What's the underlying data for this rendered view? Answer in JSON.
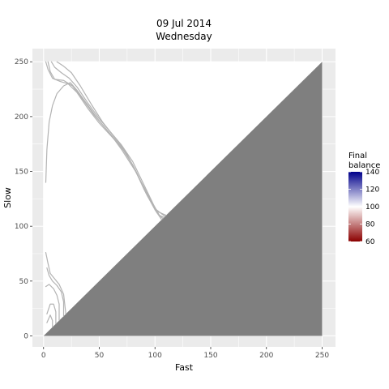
{
  "chart_data": {
    "type": "contour",
    "title": "09 Jul 2014",
    "subtitle": "Wednesday",
    "xlabel": "Fast",
    "ylabel": "Slow",
    "xlim": [
      -10,
      262
    ],
    "ylim": [
      -10,
      262
    ],
    "x_ticks": [
      0,
      50,
      100,
      150,
      200,
      250
    ],
    "y_ticks": [
      0,
      50,
      100,
      150,
      200,
      250
    ],
    "grid": true,
    "panel_background": "#ebebeb",
    "grid_color": "#ffffff",
    "data_region_color": "#ffffff",
    "masked_region": {
      "description_rule": "Slow <= Fast",
      "color": "#7f7f7f",
      "extent": [
        0,
        250
      ]
    },
    "contour_color": "#b3b3b3",
    "legend": {
      "title_lines": [
        "Final",
        "balance"
      ],
      "placement": "right",
      "range": [
        60,
        140
      ],
      "midpoint": 100,
      "ticks": [
        60,
        80,
        100,
        120,
        140
      ],
      "colors": {
        "low": "#8b0000",
        "mid": "#ffffff",
        "high": "#00008b"
      }
    },
    "contours": [
      {
        "name": "upper-level-1",
        "points": [
          [
            2,
            250
          ],
          [
            4,
            243
          ],
          [
            8,
            235
          ],
          [
            15,
            232
          ],
          [
            22,
            230
          ],
          [
            30,
            222
          ],
          [
            40,
            207
          ],
          [
            50,
            194
          ],
          [
            60,
            183
          ],
          [
            70,
            172
          ],
          [
            80,
            156
          ],
          [
            90,
            134
          ],
          [
            100,
            115
          ],
          [
            106,
            106
          ]
        ]
      },
      {
        "name": "upper-level-2",
        "points": [
          [
            4,
            250
          ],
          [
            6,
            241
          ],
          [
            10,
            234
          ],
          [
            18,
            233
          ],
          [
            26,
            228
          ],
          [
            35,
            216
          ],
          [
            45,
            202
          ],
          [
            55,
            190
          ],
          [
            65,
            178
          ],
          [
            75,
            165
          ],
          [
            84,
            148
          ],
          [
            93,
            128
          ],
          [
            102,
            112
          ],
          [
            107,
            107
          ]
        ]
      },
      {
        "name": "upper-level-3",
        "points": [
          [
            7,
            250
          ],
          [
            10,
            245
          ],
          [
            16,
            240
          ],
          [
            23,
            235
          ],
          [
            30,
            227
          ],
          [
            40,
            212
          ],
          [
            50,
            198
          ],
          [
            60,
            186
          ],
          [
            70,
            174
          ],
          [
            80,
            159
          ],
          [
            90,
            138
          ],
          [
            99,
            119
          ],
          [
            104,
            110
          ],
          [
            108,
            108
          ]
        ]
      },
      {
        "name": "upper-level-4",
        "points": [
          [
            12,
            250
          ],
          [
            18,
            246
          ],
          [
            25,
            240
          ],
          [
            33,
            228
          ],
          [
            43,
            211
          ],
          [
            53,
            195
          ],
          [
            63,
            182
          ],
          [
            73,
            169
          ],
          [
            83,
            150
          ],
          [
            92,
            130
          ],
          [
            100,
            116
          ],
          [
            109,
            109
          ]
        ]
      },
      {
        "name": "upper-level-5",
        "points": [
          [
            2,
            140
          ],
          [
            3,
            170
          ],
          [
            5,
            195
          ],
          [
            8,
            210
          ],
          [
            12,
            221
          ],
          [
            18,
            228
          ],
          [
            24,
            231
          ],
          [
            30,
            224
          ],
          [
            40,
            210
          ],
          [
            50,
            196
          ],
          [
            60,
            184
          ],
          [
            70,
            170
          ],
          [
            82,
            151
          ],
          [
            92,
            132
          ],
          [
            101,
            114
          ],
          [
            110,
            110
          ]
        ]
      },
      {
        "name": "lower-level-1",
        "points": [
          [
            2,
            76
          ],
          [
            4,
            66
          ],
          [
            6,
            57
          ],
          [
            10,
            52
          ],
          [
            14,
            47
          ],
          [
            18,
            38
          ],
          [
            20,
            20
          ]
        ]
      },
      {
        "name": "lower-level-2",
        "points": [
          [
            3,
            62
          ],
          [
            5,
            55
          ],
          [
            8,
            50
          ],
          [
            12,
            46
          ],
          [
            16,
            40
          ],
          [
            18,
            31
          ],
          [
            18,
            18
          ]
        ]
      },
      {
        "name": "lower-level-3",
        "points": [
          [
            2,
            45
          ],
          [
            5,
            47
          ],
          [
            9,
            43
          ],
          [
            12,
            37
          ],
          [
            14,
            29
          ],
          [
            14,
            14
          ]
        ]
      },
      {
        "name": "lower-level-4",
        "points": [
          [
            3,
            20
          ],
          [
            6,
            29
          ],
          [
            9,
            29
          ],
          [
            11,
            22
          ],
          [
            11,
            11
          ]
        ]
      },
      {
        "name": "lower-level-5",
        "points": [
          [
            3,
            12
          ],
          [
            6,
            19
          ],
          [
            8,
            14
          ],
          [
            8,
            8
          ]
        ]
      }
    ]
  }
}
